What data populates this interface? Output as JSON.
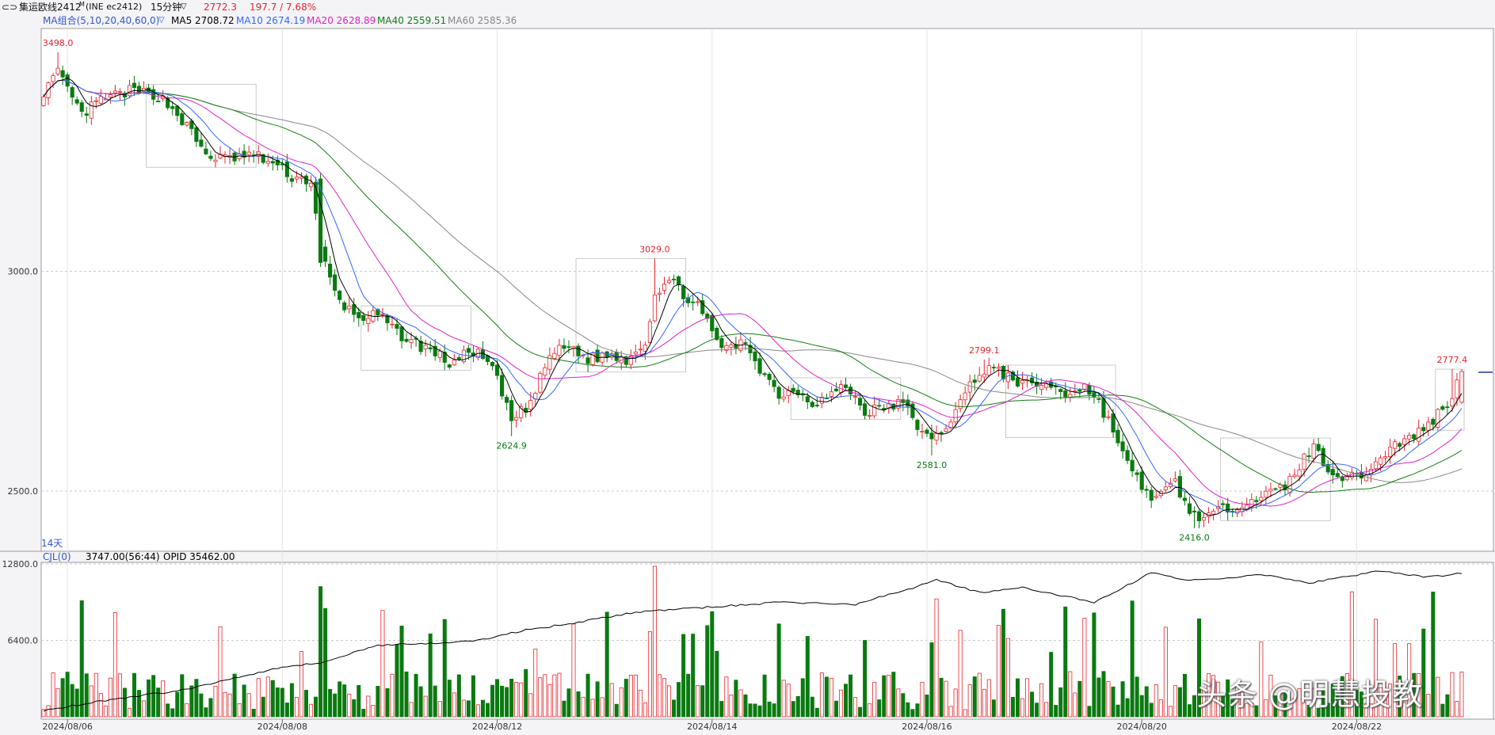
{
  "header": {
    "symbol": "集运欧线2412",
    "symbol_sup": "M",
    "exchange_code": "(INE ec2412)",
    "period": "15分钟",
    "last_price": "2772.3",
    "change": "197.7 / 7.68%",
    "ma_group_label": "MA组合(5,10,20,40,60,0)",
    "ma5": {
      "label": "MA5",
      "value": "2708.72",
      "color": "#000000"
    },
    "ma10": {
      "label": "MA10",
      "value": "2674.19",
      "color": "#3366ff"
    },
    "ma20": {
      "label": "MA20",
      "value": "2628.89",
      "color": "#e020c0"
    },
    "ma40": {
      "label": "MA40",
      "value": "2559.51",
      "color": "#108010"
    },
    "ma60": {
      "label": "MA60",
      "value": "2585.36",
      "color": "#888888"
    }
  },
  "volume_header": {
    "indicator": "CJL(0)",
    "volume": "3747.00(56:44)",
    "opid": "OPID 35462.00"
  },
  "range_label": "14天",
  "watermark": "头条 @明慧投教",
  "colors": {
    "up": "#e8232a",
    "down": "#0a7a10",
    "oi_line": "#000000"
  },
  "chart_data": {
    "type": "candlestick",
    "price_axis": {
      "ylim": [
        2410,
        3545
      ],
      "ticks": [
        "3000.0",
        "2500.0"
      ],
      "tick_values": [
        3000,
        2500
      ]
    },
    "volume_axis": {
      "ylim": [
        0,
        12800
      ],
      "ticks": [
        "12800.0",
        "6400.0"
      ],
      "tick_values": [
        12800,
        6400
      ]
    },
    "x_ticks": [
      "2024/08/06",
      "2024/08/08",
      "2024/08/12",
      "2024/08/14",
      "2024/08/16",
      "2024/08/20",
      "2024/08/22"
    ],
    "x_tick_bars": [
      5,
      50,
      95,
      140,
      185,
      230,
      275
    ],
    "bar_count": 298,
    "annotations": [
      {
        "text": "3498.0",
        "bar": 3,
        "value": 3498,
        "kind": "high"
      },
      {
        "text": "2624.9",
        "bar": 98,
        "value": 2624.9,
        "kind": "low"
      },
      {
        "text": "3029.0",
        "bar": 128,
        "value": 3029,
        "kind": "high"
      },
      {
        "text": "2581.0",
        "bar": 186,
        "value": 2581,
        "kind": "low"
      },
      {
        "text": "2799.1",
        "bar": 197,
        "value": 2799.1,
        "kind": "high"
      },
      {
        "text": "2416.0",
        "bar": 241,
        "value": 2416,
        "kind": "low"
      },
      {
        "text": "2777.4",
        "bar": 295,
        "value": 2777.4,
        "kind": "high"
      }
    ],
    "anchors": [
      [
        0,
        3410
      ],
      [
        3,
        3450
      ],
      [
        8,
        3355
      ],
      [
        12,
        3390
      ],
      [
        18,
        3410
      ],
      [
        24,
        3400
      ],
      [
        27,
        3370
      ],
      [
        30,
        3330
      ],
      [
        34,
        3265
      ],
      [
        38,
        3255
      ],
      [
        44,
        3265
      ],
      [
        48,
        3245
      ],
      [
        52,
        3215
      ],
      [
        56,
        3205
      ],
      [
        58,
        3050
      ],
      [
        60,
        2980
      ],
      [
        62,
        2930
      ],
      [
        66,
        2895
      ],
      [
        70,
        2900
      ],
      [
        74,
        2860
      ],
      [
        78,
        2835
      ],
      [
        82,
        2815
      ],
      [
        85,
        2790
      ],
      [
        90,
        2820
      ],
      [
        94,
        2780
      ],
      [
        98,
        2660
      ],
      [
        102,
        2700
      ],
      [
        106,
        2810
      ],
      [
        110,
        2830
      ],
      [
        114,
        2800
      ],
      [
        118,
        2810
      ],
      [
        122,
        2800
      ],
      [
        126,
        2840
      ],
      [
        128,
        2950
      ],
      [
        131,
        2980
      ],
      [
        134,
        2950
      ],
      [
        137,
        2920
      ],
      [
        140,
        2860
      ],
      [
        143,
        2820
      ],
      [
        147,
        2840
      ],
      [
        150,
        2780
      ],
      [
        154,
        2720
      ],
      [
        158,
        2730
      ],
      [
        161,
        2700
      ],
      [
        165,
        2720
      ],
      [
        168,
        2740
      ],
      [
        172,
        2680
      ],
      [
        176,
        2690
      ],
      [
        180,
        2700
      ],
      [
        183,
        2650
      ],
      [
        186,
        2610
      ],
      [
        189,
        2650
      ],
      [
        192,
        2700
      ],
      [
        195,
        2760
      ],
      [
        198,
        2780
      ],
      [
        202,
        2760
      ],
      [
        206,
        2740
      ],
      [
        210,
        2745
      ],
      [
        214,
        2720
      ],
      [
        218,
        2740
      ],
      [
        221,
        2700
      ],
      [
        224,
        2640
      ],
      [
        227,
        2560
      ],
      [
        230,
        2510
      ],
      [
        233,
        2480
      ],
      [
        237,
        2520
      ],
      [
        240,
        2450
      ],
      [
        243,
        2440
      ],
      [
        248,
        2460
      ],
      [
        252,
        2480
      ],
      [
        256,
        2490
      ],
      [
        260,
        2510
      ],
      [
        263,
        2560
      ],
      [
        266,
        2600
      ],
      [
        270,
        2540
      ],
      [
        274,
        2530
      ],
      [
        278,
        2550
      ],
      [
        282,
        2600
      ],
      [
        286,
        2620
      ],
      [
        290,
        2650
      ],
      [
        293,
        2690
      ],
      [
        295,
        2715
      ],
      [
        297,
        2772
      ]
    ]
  }
}
